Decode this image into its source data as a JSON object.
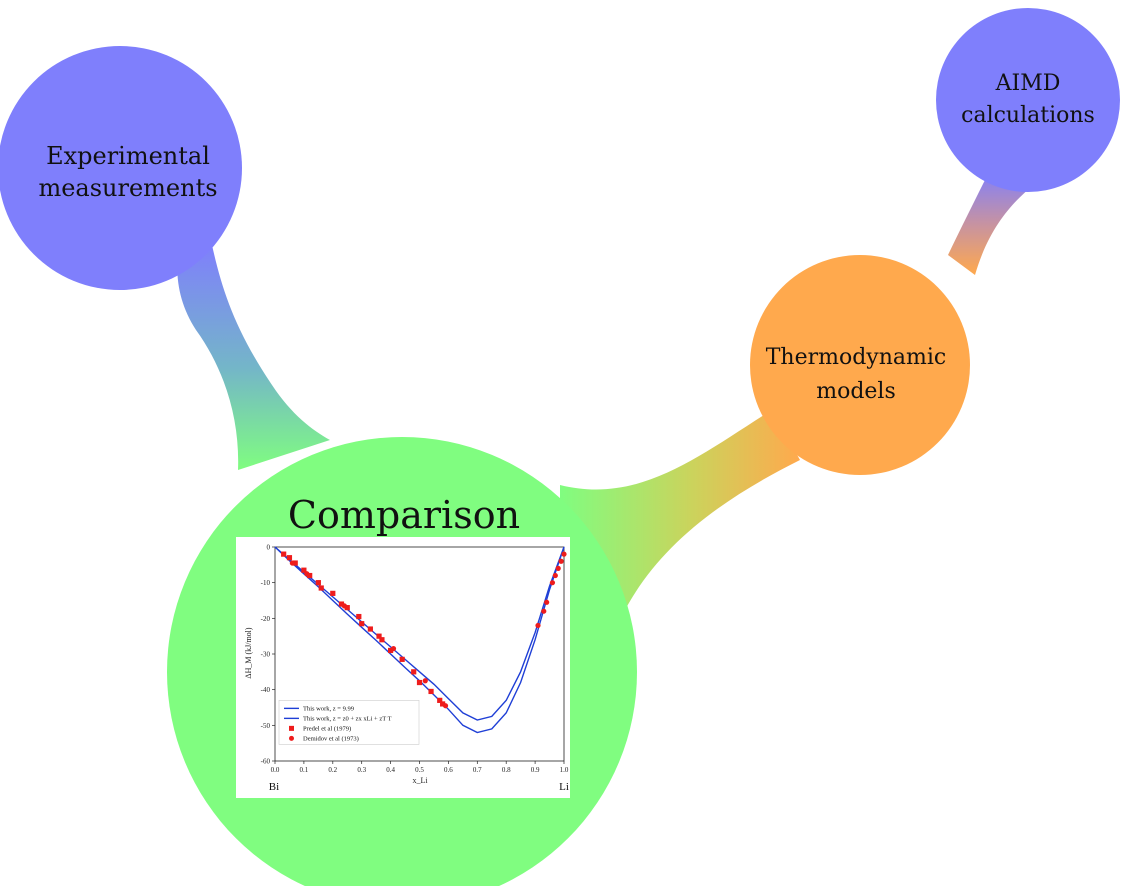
{
  "nodes": {
    "experimental": {
      "line1": "Experimental",
      "line2": "measurements",
      "color": "#7f7ffc"
    },
    "aimd": {
      "line1": "AIMD",
      "line2": "calculations",
      "color": "#7f7ffc"
    },
    "thermo": {
      "line1": "Thermodynamic",
      "line2": "models",
      "color": "#ffa94d"
    },
    "comparison": {
      "title": "Comparison",
      "color": "#80fd80"
    }
  },
  "chart_data": {
    "type": "line",
    "xlabel": "x_Li",
    "ylabel": "ΔH_M (kJ/mol)",
    "xlim": [
      0.0,
      1.0
    ],
    "ylim": [
      -60,
      0
    ],
    "x_ticks": [
      "0.0",
      "0.1",
      "0.2",
      "0.3",
      "0.4",
      "0.5",
      "0.6",
      "0.7",
      "0.8",
      "0.9",
      "1.0"
    ],
    "y_ticks": [
      "0",
      "-10",
      "-20",
      "-30",
      "-40",
      "-50",
      "-60"
    ],
    "x_end_labels": {
      "left": "Bi",
      "right": "Li"
    },
    "legend": {
      "position": "bottom-left",
      "entries": [
        "This work, z = 9.99",
        "This work, z = z0 + zx xLi + zT T",
        "Predel et al (1979)",
        "Demidov et al (1973)"
      ]
    },
    "series": [
      {
        "name": "This work, z = 9.99",
        "kind": "line",
        "color": "#1f3fd6",
        "x": [
          0.0,
          0.05,
          0.1,
          0.15,
          0.2,
          0.25,
          0.3,
          0.35,
          0.4,
          0.45,
          0.5,
          0.55,
          0.6,
          0.65,
          0.7,
          0.75,
          0.8,
          0.85,
          0.9,
          0.95,
          1.0
        ],
        "y": [
          0,
          -3.5,
          -7,
          -10.5,
          -14,
          -17.5,
          -21,
          -24.5,
          -28,
          -31.5,
          -35,
          -38.5,
          -42.5,
          -46.5,
          -48.5,
          -47.5,
          -43,
          -35,
          -24,
          -11,
          0
        ]
      },
      {
        "name": "This work, z = z0 + zx xLi + zT T",
        "kind": "line",
        "color": "#1f3fd6",
        "x": [
          0.0,
          0.05,
          0.1,
          0.15,
          0.2,
          0.25,
          0.3,
          0.35,
          0.4,
          0.45,
          0.5,
          0.55,
          0.6,
          0.65,
          0.7,
          0.75,
          0.8,
          0.85,
          0.9,
          0.95,
          1.0
        ],
        "y": [
          0,
          -3.8,
          -7.5,
          -11.2,
          -15,
          -18.8,
          -22.5,
          -26.2,
          -30,
          -33.8,
          -37.5,
          -41.5,
          -45.5,
          -50,
          -52,
          -51,
          -46.5,
          -38,
          -26,
          -12,
          0
        ]
      },
      {
        "name": "Predel et al (1979)",
        "kind": "scatter",
        "marker": "square",
        "color": "#ee1c1c",
        "x": [
          0.03,
          0.05,
          0.07,
          0.1,
          0.12,
          0.15,
          0.16,
          0.2,
          0.23,
          0.25,
          0.29,
          0.3,
          0.33,
          0.36,
          0.37,
          0.4,
          0.44,
          0.48,
          0.5,
          0.54,
          0.57,
          0.58
        ],
        "y": [
          -2,
          -3,
          -4.5,
          -6.5,
          -8,
          -10,
          -11.5,
          -13,
          -16,
          -17,
          -19.5,
          -21.5,
          -23,
          -25,
          -26,
          -29,
          -31.5,
          -35,
          -38,
          -40.5,
          -43,
          -44
        ]
      },
      {
        "name": "Demidov et al (1973)",
        "kind": "scatter",
        "marker": "circle",
        "color": "#ee1c1c",
        "x": [
          0.06,
          0.11,
          0.24,
          0.41,
          0.52,
          0.59,
          0.91,
          0.93,
          0.94,
          0.96,
          0.97,
          0.98,
          0.99,
          1.0
        ],
        "y": [
          -4.5,
          -7.5,
          -16.5,
          -28.5,
          -37.5,
          -44.5,
          -22,
          -18,
          -15.5,
          -10,
          -8,
          -6,
          -4,
          -2
        ]
      }
    ]
  }
}
